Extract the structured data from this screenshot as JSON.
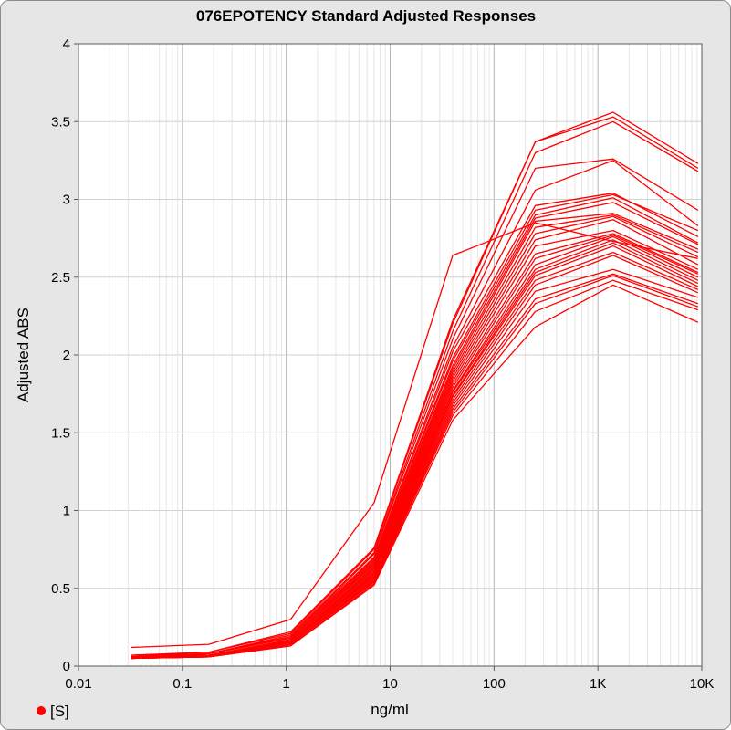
{
  "chart_data": {
    "type": "line",
    "title": "076EPOTENCY Standard Adjusted Responses",
    "xlabel": "ng/ml",
    "ylabel": "Adjusted ABS",
    "x_scale": "log",
    "xlim": [
      0.01,
      10000
    ],
    "ylim": [
      0,
      4
    ],
    "x_tick_labels": [
      "0.01",
      "0.1",
      "1",
      "10",
      "100",
      "1K",
      "10K"
    ],
    "y_tick_labels": [
      "0",
      "0.5",
      "1",
      "1.5",
      "2",
      "2.5",
      "3",
      "3.5",
      "4"
    ],
    "grid": true,
    "legend": {
      "position": "bottom-left",
      "entries": [
        "[S]"
      ]
    },
    "series_color": "#ff0000",
    "x": [
      0.032,
      0.18,
      1.1,
      7.0,
      40,
      250,
      1400,
      9200
    ],
    "series": [
      {
        "values": [
          0.12,
          0.14,
          0.3,
          1.05,
          2.64,
          2.85,
          2.73,
          2.62
        ]
      },
      {
        "values": [
          0.07,
          0.09,
          0.22,
          0.76,
          2.22,
          3.37,
          3.56,
          3.23
        ]
      },
      {
        "values": [
          0.07,
          0.09,
          0.21,
          0.75,
          2.2,
          3.37,
          3.53,
          3.2
        ]
      },
      {
        "values": [
          0.06,
          0.08,
          0.2,
          0.73,
          2.15,
          3.3,
          3.5,
          3.18
        ]
      },
      {
        "values": [
          0.07,
          0.08,
          0.19,
          0.72,
          2.1,
          3.2,
          3.26,
          2.93
        ]
      },
      {
        "values": [
          0.06,
          0.08,
          0.19,
          0.7,
          2.05,
          3.06,
          3.25,
          2.83
        ]
      },
      {
        "values": [
          0.06,
          0.08,
          0.18,
          0.69,
          2.02,
          2.96,
          3.04,
          2.76
        ]
      },
      {
        "values": [
          0.06,
          0.08,
          0.18,
          0.68,
          1.98,
          2.93,
          3.03,
          2.8
        ]
      },
      {
        "values": [
          0.06,
          0.07,
          0.17,
          0.67,
          1.96,
          2.9,
          3.01,
          2.72
        ]
      },
      {
        "values": [
          0.06,
          0.07,
          0.17,
          0.66,
          1.93,
          2.88,
          2.98,
          2.71
        ]
      },
      {
        "values": [
          0.06,
          0.07,
          0.17,
          0.65,
          1.91,
          2.86,
          2.91,
          2.68
        ]
      },
      {
        "values": [
          0.06,
          0.07,
          0.16,
          0.64,
          1.89,
          2.82,
          2.9,
          2.66
        ]
      },
      {
        "values": [
          0.06,
          0.07,
          0.16,
          0.63,
          1.87,
          2.78,
          2.89,
          2.63
        ]
      },
      {
        "values": [
          0.06,
          0.07,
          0.16,
          0.62,
          1.85,
          2.74,
          2.87,
          2.58
        ]
      },
      {
        "values": [
          0.06,
          0.07,
          0.16,
          0.61,
          1.83,
          2.7,
          2.8,
          2.55
        ]
      },
      {
        "values": [
          0.06,
          0.07,
          0.15,
          0.6,
          1.81,
          2.65,
          2.78,
          2.53
        ]
      },
      {
        "values": [
          0.06,
          0.07,
          0.15,
          0.6,
          1.79,
          2.62,
          2.77,
          2.52
        ]
      },
      {
        "values": [
          0.06,
          0.07,
          0.15,
          0.59,
          1.77,
          2.58,
          2.76,
          2.5
        ]
      },
      {
        "values": [
          0.06,
          0.07,
          0.15,
          0.58,
          1.76,
          2.55,
          2.74,
          2.48
        ]
      },
      {
        "values": [
          0.05,
          0.07,
          0.15,
          0.58,
          1.74,
          2.53,
          2.72,
          2.46
        ]
      },
      {
        "values": [
          0.05,
          0.07,
          0.15,
          0.57,
          1.73,
          2.51,
          2.7,
          2.44
        ]
      },
      {
        "values": [
          0.05,
          0.07,
          0.14,
          0.56,
          1.71,
          2.48,
          2.66,
          2.42
        ]
      },
      {
        "values": [
          0.05,
          0.07,
          0.14,
          0.56,
          1.69,
          2.45,
          2.64,
          2.4
        ]
      },
      {
        "values": [
          0.05,
          0.06,
          0.14,
          0.55,
          1.67,
          2.41,
          2.55,
          2.37
        ]
      },
      {
        "values": [
          0.05,
          0.06,
          0.14,
          0.54,
          1.65,
          2.36,
          2.52,
          2.33
        ]
      },
      {
        "values": [
          0.05,
          0.06,
          0.14,
          0.54,
          1.63,
          2.33,
          2.51,
          2.31
        ]
      },
      {
        "values": [
          0.05,
          0.06,
          0.13,
          0.53,
          1.61,
          2.28,
          2.48,
          2.29
        ]
      },
      {
        "values": [
          0.05,
          0.06,
          0.13,
          0.52,
          1.58,
          2.18,
          2.45,
          2.21
        ]
      }
    ]
  }
}
